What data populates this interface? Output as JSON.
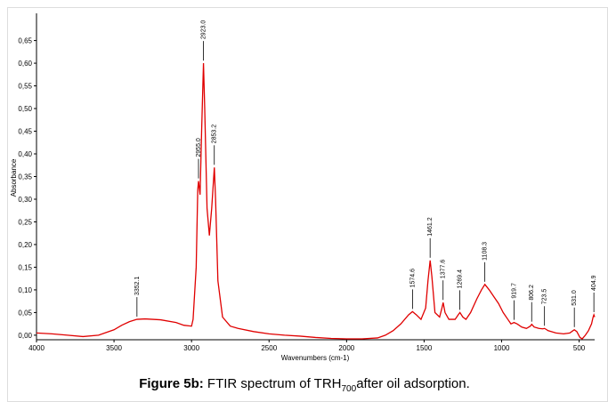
{
  "chart_data": {
    "type": "line",
    "y_label": "Absorbance",
    "x_label": "Wavenumbers (cm-1)",
    "caption": {
      "label": "Figure 5b:",
      "text": "FTIR spectrum of TRH",
      "subscript": "700",
      "rest": "after oil adsorption."
    },
    "color": "#e00000",
    "xlim": [
      4000,
      400
    ],
    "ylim": [
      -0.01,
      0.71
    ],
    "xticks": [
      4000,
      3500,
      3000,
      2500,
      2000,
      1500,
      1000,
      500
    ],
    "yticks": [
      {
        "value": 0,
        "label": "0,00"
      },
      {
        "value": 0.05,
        "label": "0,05"
      },
      {
        "value": 0.1,
        "label": "0,10"
      },
      {
        "value": 0.15,
        "label": "0,15"
      },
      {
        "value": 0.2,
        "label": "0,20"
      },
      {
        "value": 0.25,
        "label": "0,25"
      },
      {
        "value": 0.3,
        "label": "0,30"
      },
      {
        "value": 0.35,
        "label": "0,35"
      },
      {
        "value": 0.4,
        "label": "0,40"
      },
      {
        "value": 0.45,
        "label": "0,45"
      },
      {
        "value": 0.5,
        "label": "0,50"
      },
      {
        "value": 0.55,
        "label": "0,55"
      },
      {
        "value": 0.6,
        "label": "0,60"
      },
      {
        "value": 0.65,
        "label": "0,65"
      }
    ],
    "x": [
      4000,
      3900,
      3800,
      3700,
      3600,
      3500,
      3450,
      3400,
      3352,
      3300,
      3200,
      3100,
      3050,
      3000,
      2990,
      2970,
      2960,
      2955,
      2945,
      2935,
      2923,
      2915,
      2900,
      2885,
      2870,
      2853,
      2845,
      2830,
      2800,
      2750,
      2700,
      2600,
      2500,
      2400,
      2300,
      2200,
      2100,
      2000,
      1900,
      1800,
      1750,
      1700,
      1650,
      1600,
      1575,
      1550,
      1520,
      1490,
      1475,
      1461,
      1450,
      1430,
      1400,
      1385,
      1377,
      1365,
      1340,
      1300,
      1280,
      1269,
      1250,
      1230,
      1200,
      1160,
      1130,
      1108,
      1080,
      1050,
      1020,
      990,
      960,
      940,
      920,
      900,
      870,
      840,
      815,
      806,
      790,
      760,
      735,
      723,
      700,
      650,
      600,
      560,
      540,
      531,
      515,
      495,
      480,
      460,
      440,
      420,
      410,
      405,
      400
    ],
    "values": [
      0.005,
      0.003,
      0.0,
      -0.003,
      0.0,
      0.012,
      0.022,
      0.03,
      0.035,
      0.036,
      0.034,
      0.028,
      0.022,
      0.02,
      0.035,
      0.15,
      0.32,
      0.34,
      0.31,
      0.45,
      0.6,
      0.5,
      0.28,
      0.22,
      0.28,
      0.37,
      0.3,
      0.12,
      0.04,
      0.02,
      0.015,
      0.008,
      0.003,
      0.0,
      -0.002,
      -0.005,
      -0.007,
      -0.008,
      -0.008,
      -0.006,
      0.0,
      0.01,
      0.025,
      0.045,
      0.052,
      0.045,
      0.035,
      0.06,
      0.12,
      0.165,
      0.13,
      0.05,
      0.04,
      0.06,
      0.072,
      0.05,
      0.035,
      0.035,
      0.045,
      0.05,
      0.04,
      0.035,
      0.05,
      0.08,
      0.1,
      0.112,
      0.1,
      0.085,
      0.07,
      0.05,
      0.035,
      0.025,
      0.028,
      0.025,
      0.018,
      0.015,
      0.02,
      0.024,
      0.018,
      0.015,
      0.014,
      0.015,
      0.01,
      0.005,
      0.003,
      0.005,
      0.01,
      0.012,
      0.008,
      -0.005,
      -0.008,
      0.0,
      0.01,
      0.025,
      0.04,
      0.045,
      0.04
    ],
    "annotations": [
      {
        "label": "3352.1",
        "x": 3352.1,
        "y": 0.035
      },
      {
        "label": "2955.0",
        "x": 2955.0,
        "y": 0.34
      },
      {
        "label": "2923.0",
        "x": 2923.0,
        "y": 0.6
      },
      {
        "label": "2853.2",
        "x": 2853.2,
        "y": 0.37
      },
      {
        "label": "1574.6",
        "x": 1574.6,
        "y": 0.052
      },
      {
        "label": "1461.2",
        "x": 1461.2,
        "y": 0.165
      },
      {
        "label": "1377.6",
        "x": 1377.6,
        "y": 0.072
      },
      {
        "label": "1269.4",
        "x": 1269.4,
        "y": 0.05
      },
      {
        "label": "1108.3",
        "x": 1108.3,
        "y": 0.112
      },
      {
        "label": "919.7",
        "x": 919.7,
        "y": 0.028
      },
      {
        "label": "806.2",
        "x": 806.2,
        "y": 0.024
      },
      {
        "label": "723.5",
        "x": 723.5,
        "y": 0.015
      },
      {
        "label": "531.0",
        "x": 531.0,
        "y": 0.012
      },
      {
        "label": "404.9",
        "x": 404.9,
        "y": 0.045
      }
    ]
  }
}
